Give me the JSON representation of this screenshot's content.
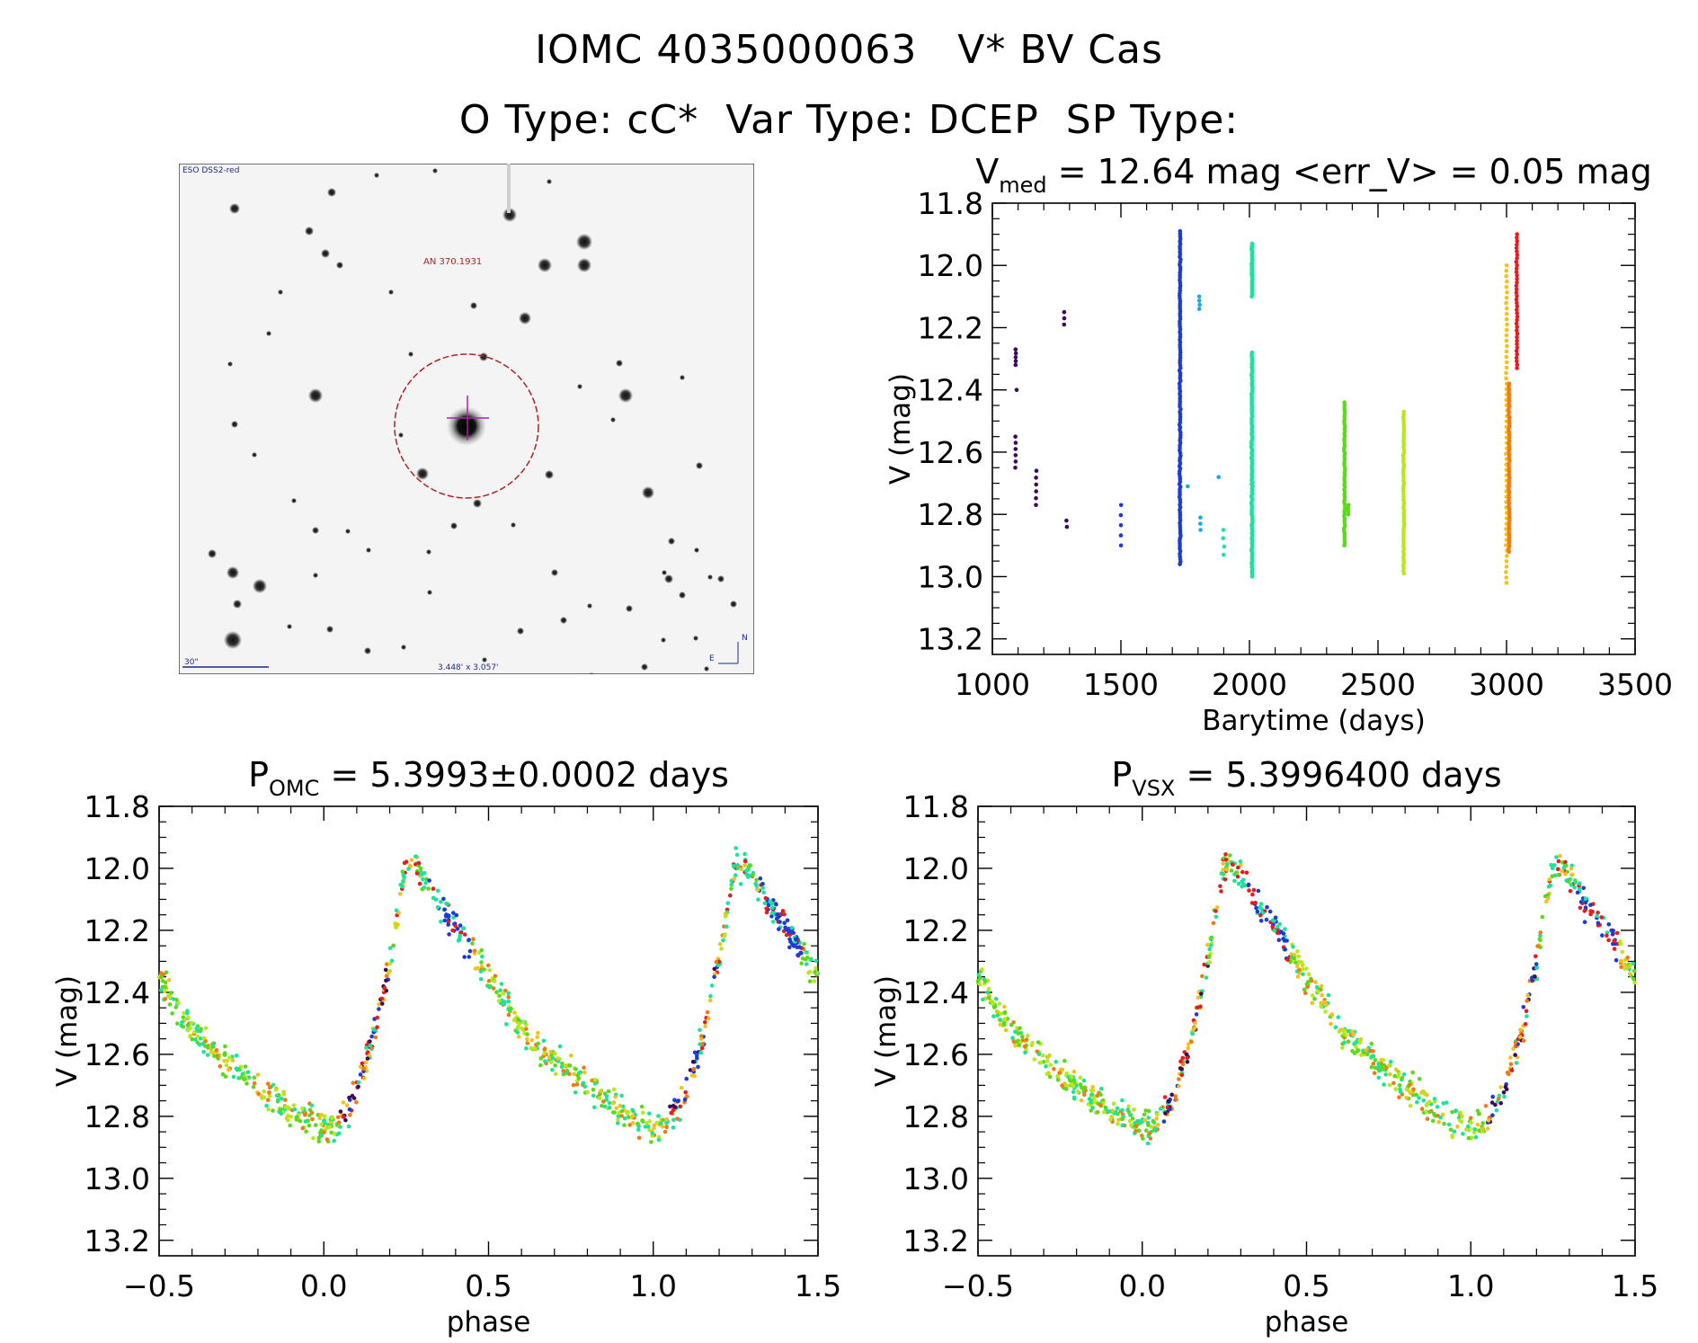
{
  "header": {
    "line1": "IOMC 4035000063   V* BV Cas",
    "line2": "O Type: cC*  Var Type: DCEP  SP Type:"
  },
  "finder_chart": {
    "survey_label": "ESO DSS2-red",
    "object_label": "AN 370.1931",
    "scale_label": "30\"",
    "size_label": "3.448' x 3.057'",
    "compass_n": "N",
    "compass_e": "E",
    "circle_color": "#aa2222",
    "cross_color": "#aa22aa"
  },
  "colors": {
    "palette": [
      "#3b0a5a",
      "#1b3ad6",
      "#1fa6e6",
      "#19e59a",
      "#5cd91a",
      "#b8e81a",
      "#f2c21a",
      "#f27a12",
      "#e81c1c"
    ]
  },
  "chart_data": [
    {
      "id": "light-curve",
      "type": "scatter",
      "title_main": "V",
      "title_sub": "med",
      "title_rest": " = 12.64 mag <err_V> = 0.05 mag",
      "xlabel": "Barytime (days)",
      "ylabel": "V (mag)",
      "xlim": [
        1000,
        3500
      ],
      "ylim": [
        13.25,
        11.8
      ],
      "xticks": [
        "1000",
        "1500",
        "2000",
        "2500",
        "3000",
        "3500"
      ],
      "xtick_values": [
        1000,
        1500,
        2000,
        2500,
        3000,
        3500
      ],
      "yticks": [
        "11.8",
        "12.0",
        "12.2",
        "12.4",
        "12.6",
        "12.8",
        "13.0",
        "13.2"
      ],
      "ytick_values": [
        11.8,
        12.0,
        12.2,
        12.4,
        12.6,
        12.8,
        13.0,
        13.2
      ],
      "groups": [
        {
          "t": 1090,
          "vmin": 12.27,
          "vmax": 12.32,
          "n": 5,
          "c": 0
        },
        {
          "t": 1090,
          "vmin": 12.55,
          "vmax": 12.65,
          "n": 6,
          "c": 0
        },
        {
          "t": 1095,
          "vmin": 12.4,
          "vmax": 12.4,
          "n": 1,
          "c": 0
        },
        {
          "t": 1170,
          "vmin": 12.66,
          "vmax": 12.77,
          "n": 6,
          "c": 0
        },
        {
          "t": 1280,
          "vmin": 12.15,
          "vmax": 12.19,
          "n": 3,
          "c": 0
        },
        {
          "t": 1290,
          "vmin": 12.82,
          "vmax": 12.84,
          "n": 2,
          "c": 0
        },
        {
          "t": 1500,
          "vmin": 12.77,
          "vmax": 12.9,
          "n": 5,
          "c": 1
        },
        {
          "t": 1730,
          "vmin": 11.89,
          "vmax": 12.96,
          "n": 130,
          "c": 1
        },
        {
          "t": 1805,
          "vmin": 12.1,
          "vmax": 12.14,
          "n": 4,
          "c": 2
        },
        {
          "t": 1810,
          "vmin": 12.81,
          "vmax": 12.85,
          "n": 3,
          "c": 2
        },
        {
          "t": 1760,
          "vmin": 12.71,
          "vmax": 12.71,
          "n": 1,
          "c": 2
        },
        {
          "t": 1880,
          "vmin": 12.68,
          "vmax": 12.68,
          "n": 1,
          "c": 2
        },
        {
          "t": 1900,
          "vmin": 12.85,
          "vmax": 12.93,
          "n": 4,
          "c": 3
        },
        {
          "t": 2010,
          "vmin": 11.93,
          "vmax": 12.1,
          "n": 40,
          "c": 3
        },
        {
          "t": 2010,
          "vmin": 12.28,
          "vmax": 13.0,
          "n": 120,
          "c": 3
        },
        {
          "t": 2370,
          "vmin": 12.44,
          "vmax": 12.9,
          "n": 60,
          "c": 4
        },
        {
          "t": 2385,
          "vmin": 12.77,
          "vmax": 12.8,
          "n": 4,
          "c": 4
        },
        {
          "t": 2600,
          "vmin": 12.47,
          "vmax": 12.99,
          "n": 60,
          "c": 5
        },
        {
          "t": 3000,
          "vmin": 12.0,
          "vmax": 13.02,
          "n": 60,
          "c": 6
        },
        {
          "t": 3010,
          "vmin": 12.38,
          "vmax": 12.92,
          "n": 60,
          "c": 7
        },
        {
          "t": 3040,
          "vmin": 11.9,
          "vmax": 12.33,
          "n": 40,
          "c": 8
        }
      ]
    },
    {
      "id": "phase-omc",
      "type": "scatter",
      "title_main": "P",
      "title_sub": "OMC",
      "title_rest": " = 5.3993±0.0002 days",
      "xlabel": "phase",
      "ylabel": "V (mag)",
      "xlim": [
        -0.5,
        1.5
      ],
      "ylim": [
        13.25,
        11.8
      ],
      "xticks": [
        "−0.5",
        "0.0",
        "0.5",
        "1.0",
        "1.5"
      ],
      "xtick_values": [
        -0.5,
        0.0,
        0.5,
        1.0,
        1.5
      ],
      "yticks": [
        "11.8",
        "12.0",
        "12.2",
        "12.4",
        "12.6",
        "12.8",
        "13.0",
        "13.2"
      ],
      "ytick_values": [
        11.8,
        12.0,
        12.2,
        12.4,
        12.6,
        12.8,
        13.0,
        13.2
      ],
      "curve_phase": [
        0.0,
        0.05,
        0.1,
        0.15,
        0.2,
        0.25,
        0.3,
        0.35,
        0.4,
        0.5,
        0.6,
        0.7,
        0.8,
        0.9,
        1.0
      ],
      "curve_mag": [
        12.84,
        12.82,
        12.72,
        12.55,
        12.3,
        11.98,
        12.02,
        12.12,
        12.18,
        12.35,
        12.52,
        12.62,
        12.7,
        12.78,
        12.84
      ]
    },
    {
      "id": "phase-vsx",
      "type": "scatter",
      "title_main": "P",
      "title_sub": "VSX",
      "title_rest": " = 5.3996400 days",
      "xlabel": "phase",
      "ylabel": "V (mag)",
      "xlim": [
        -0.5,
        1.5
      ],
      "ylim": [
        13.25,
        11.8
      ],
      "xticks": [
        "−0.5",
        "0.0",
        "0.5",
        "1.0",
        "1.5"
      ],
      "xtick_values": [
        -0.5,
        0.0,
        0.5,
        1.0,
        1.5
      ],
      "yticks": [
        "11.8",
        "12.0",
        "12.2",
        "12.4",
        "12.6",
        "12.8",
        "13.0",
        "13.2"
      ],
      "ytick_values": [
        11.8,
        12.0,
        12.2,
        12.4,
        12.6,
        12.8,
        13.0,
        13.2
      ],
      "curve_phase": [
        0.0,
        0.05,
        0.1,
        0.15,
        0.2,
        0.25,
        0.3,
        0.35,
        0.4,
        0.5,
        0.6,
        0.7,
        0.8,
        0.9,
        1.0
      ],
      "curve_mag": [
        12.84,
        12.82,
        12.72,
        12.55,
        12.3,
        11.98,
        12.02,
        12.12,
        12.18,
        12.35,
        12.52,
        12.62,
        12.7,
        12.78,
        12.84
      ]
    }
  ]
}
